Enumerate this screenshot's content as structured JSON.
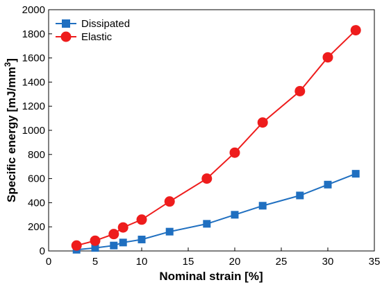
{
  "chart_data": {
    "type": "line",
    "xlabel": "Nominal strain [%]",
    "ylabel_prefix": "Specific energy [mJ/mm",
    "ylabel_sup": "3",
    "ylabel_suffix": "]",
    "xlim": [
      0,
      35
    ],
    "ylim": [
      0,
      2000
    ],
    "xticks": [
      0,
      5,
      10,
      15,
      20,
      25,
      30,
      35
    ],
    "yticks": [
      0,
      200,
      400,
      600,
      800,
      1000,
      1200,
      1400,
      1600,
      1800,
      2000
    ],
    "grid": false,
    "legend_position": "top-left",
    "series": [
      {
        "name": "Dissipated",
        "color": "#1f6fc0",
        "marker": "square",
        "x": [
          3,
          5,
          7,
          8,
          10,
          13,
          17,
          20,
          23,
          27,
          30,
          33
        ],
        "y": [
          10,
          25,
          45,
          70,
          95,
          160,
          225,
          300,
          375,
          460,
          550,
          640
        ]
      },
      {
        "name": "Elastic",
        "color": "#ee1c1c",
        "marker": "circle",
        "x": [
          3,
          5,
          7,
          8,
          10,
          13,
          17,
          20,
          23,
          27,
          30,
          33
        ],
        "y": [
          45,
          85,
          140,
          195,
          260,
          410,
          600,
          815,
          1065,
          1325,
          1605,
          1830
        ]
      }
    ]
  }
}
